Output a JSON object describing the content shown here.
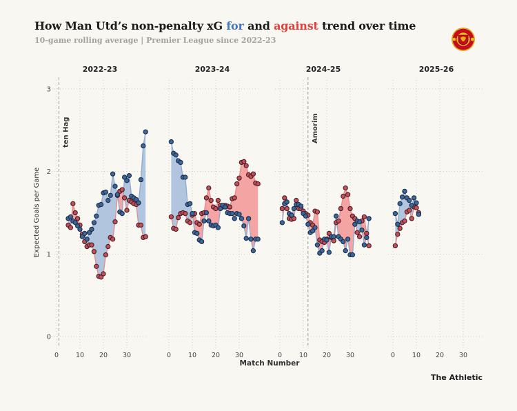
{
  "header": {
    "title_part1": "How Man Utd’s non-penalty xG ",
    "title_for": "for",
    "title_mid": " and ",
    "title_against": "against",
    "title_part2": " trend over time",
    "subtitle": "10-game rolling average | Premier League since 2022-23"
  },
  "footer": {
    "credit": "The Athletic"
  },
  "colors": {
    "background": "#f8f7f2",
    "title_for_blue": "#4477bb",
    "title_against_red": "#e2413a",
    "for_marker": "#3e6696",
    "for_marker_edge": "#1b2c4a",
    "for_line": "#8fa9cc",
    "for_area": "#a9bfdb",
    "against_marker": "#c24f5a",
    "against_marker_edge": "#471d23",
    "against_line": "#e58b90",
    "against_area": "#f29a9a",
    "gridline": "#cbcac2",
    "manager_line": "#9a9a92"
  },
  "chart_data": {
    "type": "area",
    "title": "How Man Utd’s non-penalty xG for and against trend over time",
    "subtitle": "10-game rolling average | Premier League since 2022-23",
    "xlabel": "Match Number",
    "ylabel": "Expected Goals per Game",
    "ylim": [
      0,
      3
    ],
    "yticks": [
      0,
      1,
      2,
      3
    ],
    "xticks": [
      0,
      10,
      20,
      30
    ],
    "grid": "dotted",
    "legend": "in-title",
    "series_names": [
      "xG for",
      "xG against"
    ],
    "panels": [
      {
        "season": "2022-23",
        "start_match": 5,
        "manager": {
          "label": "ten Hag",
          "match": 1
        },
        "for": [
          1.43,
          1.45,
          1.4,
          1.38,
          1.34,
          1.3,
          1.21,
          1.25,
          1.18,
          1.26,
          1.3,
          1.38,
          1.46,
          1.59,
          1.6,
          1.74,
          1.75,
          1.65,
          1.71,
          1.97,
          1.82,
          1.72,
          1.51,
          1.49,
          1.93,
          1.89,
          1.95,
          1.7,
          1.68,
          1.66,
          1.62,
          1.9,
          2.31,
          2.48
        ],
        "against": [
          1.35,
          1.32,
          1.61,
          1.5,
          1.43,
          1.35,
          1.24,
          1.15,
          1.09,
          1.11,
          1.11,
          1.03,
          0.85,
          0.73,
          0.72,
          0.76,
          0.99,
          1.09,
          1.2,
          1.18,
          1.39,
          1.71,
          1.76,
          1.78,
          1.68,
          1.53,
          1.65,
          1.63,
          1.61,
          1.6,
          1.35,
          1.35,
          1.2,
          1.21
        ]
      },
      {
        "season": "2023-24",
        "start_match": 1,
        "for": [
          2.36,
          2.22,
          2.2,
          2.13,
          2.11,
          1.93,
          1.93,
          1.6,
          1.61,
          1.49,
          1.26,
          1.25,
          1.17,
          1.15,
          1.4,
          1.5,
          1.4,
          1.35,
          1.34,
          1.35,
          1.32,
          1.55,
          1.59,
          1.57,
          1.5,
          1.49,
          1.49,
          1.43,
          1.49,
          1.48,
          1.43,
          1.34,
          1.19,
          1.43,
          1.18,
          1.04,
          1.18,
          1.18
        ],
        "against": [
          1.45,
          1.31,
          1.3,
          1.44,
          1.49,
          1.5,
          1.49,
          1.4,
          1.38,
          1.47,
          1.49,
          1.38,
          1.36,
          1.49,
          1.5,
          1.68,
          1.8,
          1.65,
          1.57,
          1.55,
          1.65,
          1.59,
          1.57,
          1.59,
          1.58,
          1.57,
          1.67,
          1.68,
          1.85,
          1.92,
          2.11,
          2.12,
          2.07,
          1.96,
          1.94,
          1.97,
          1.86,
          1.85
        ]
      },
      {
        "season": "2024-25",
        "start_match": 1,
        "manager": {
          "label": "Amorim",
          "match": 12
        },
        "for": [
          1.38,
          1.61,
          1.63,
          1.49,
          1.47,
          1.55,
          1.6,
          1.6,
          1.58,
          1.49,
          1.46,
          1.36,
          1.26,
          1.28,
          1.32,
          1.11,
          1.01,
          1.04,
          1.18,
          1.17,
          1.02,
          1.21,
          1.21,
          1.46,
          1.21,
          1.18,
          1.15,
          1.04,
          1.18,
          0.99,
          0.99,
          1.36,
          1.4,
          1.39,
          1.29,
          1.11,
          1.2,
          1.43
        ],
        "against": [
          1.55,
          1.68,
          1.55,
          1.43,
          1.42,
          1.43,
          1.65,
          1.55,
          1.55,
          1.52,
          1.49,
          1.47,
          1.38,
          1.35,
          1.52,
          1.51,
          1.17,
          1.15,
          1.14,
          1.18,
          1.25,
          1.2,
          1.16,
          1.38,
          1.4,
          1.55,
          1.7,
          1.8,
          1.72,
          1.55,
          1.46,
          1.43,
          1.26,
          1.21,
          1.4,
          1.45,
          1.25,
          1.1
        ]
      },
      {
        "season": "2025-26",
        "start_match": 1,
        "for": [
          1.49,
          1.36,
          1.61,
          1.69,
          1.76,
          1.68,
          1.65,
          1.59,
          1.68,
          1.62,
          1.48
        ],
        "against": [
          1.1,
          1.24,
          1.31,
          1.38,
          1.4,
          1.51,
          1.53,
          1.43,
          1.57,
          1.56,
          1.5
        ]
      }
    ]
  }
}
